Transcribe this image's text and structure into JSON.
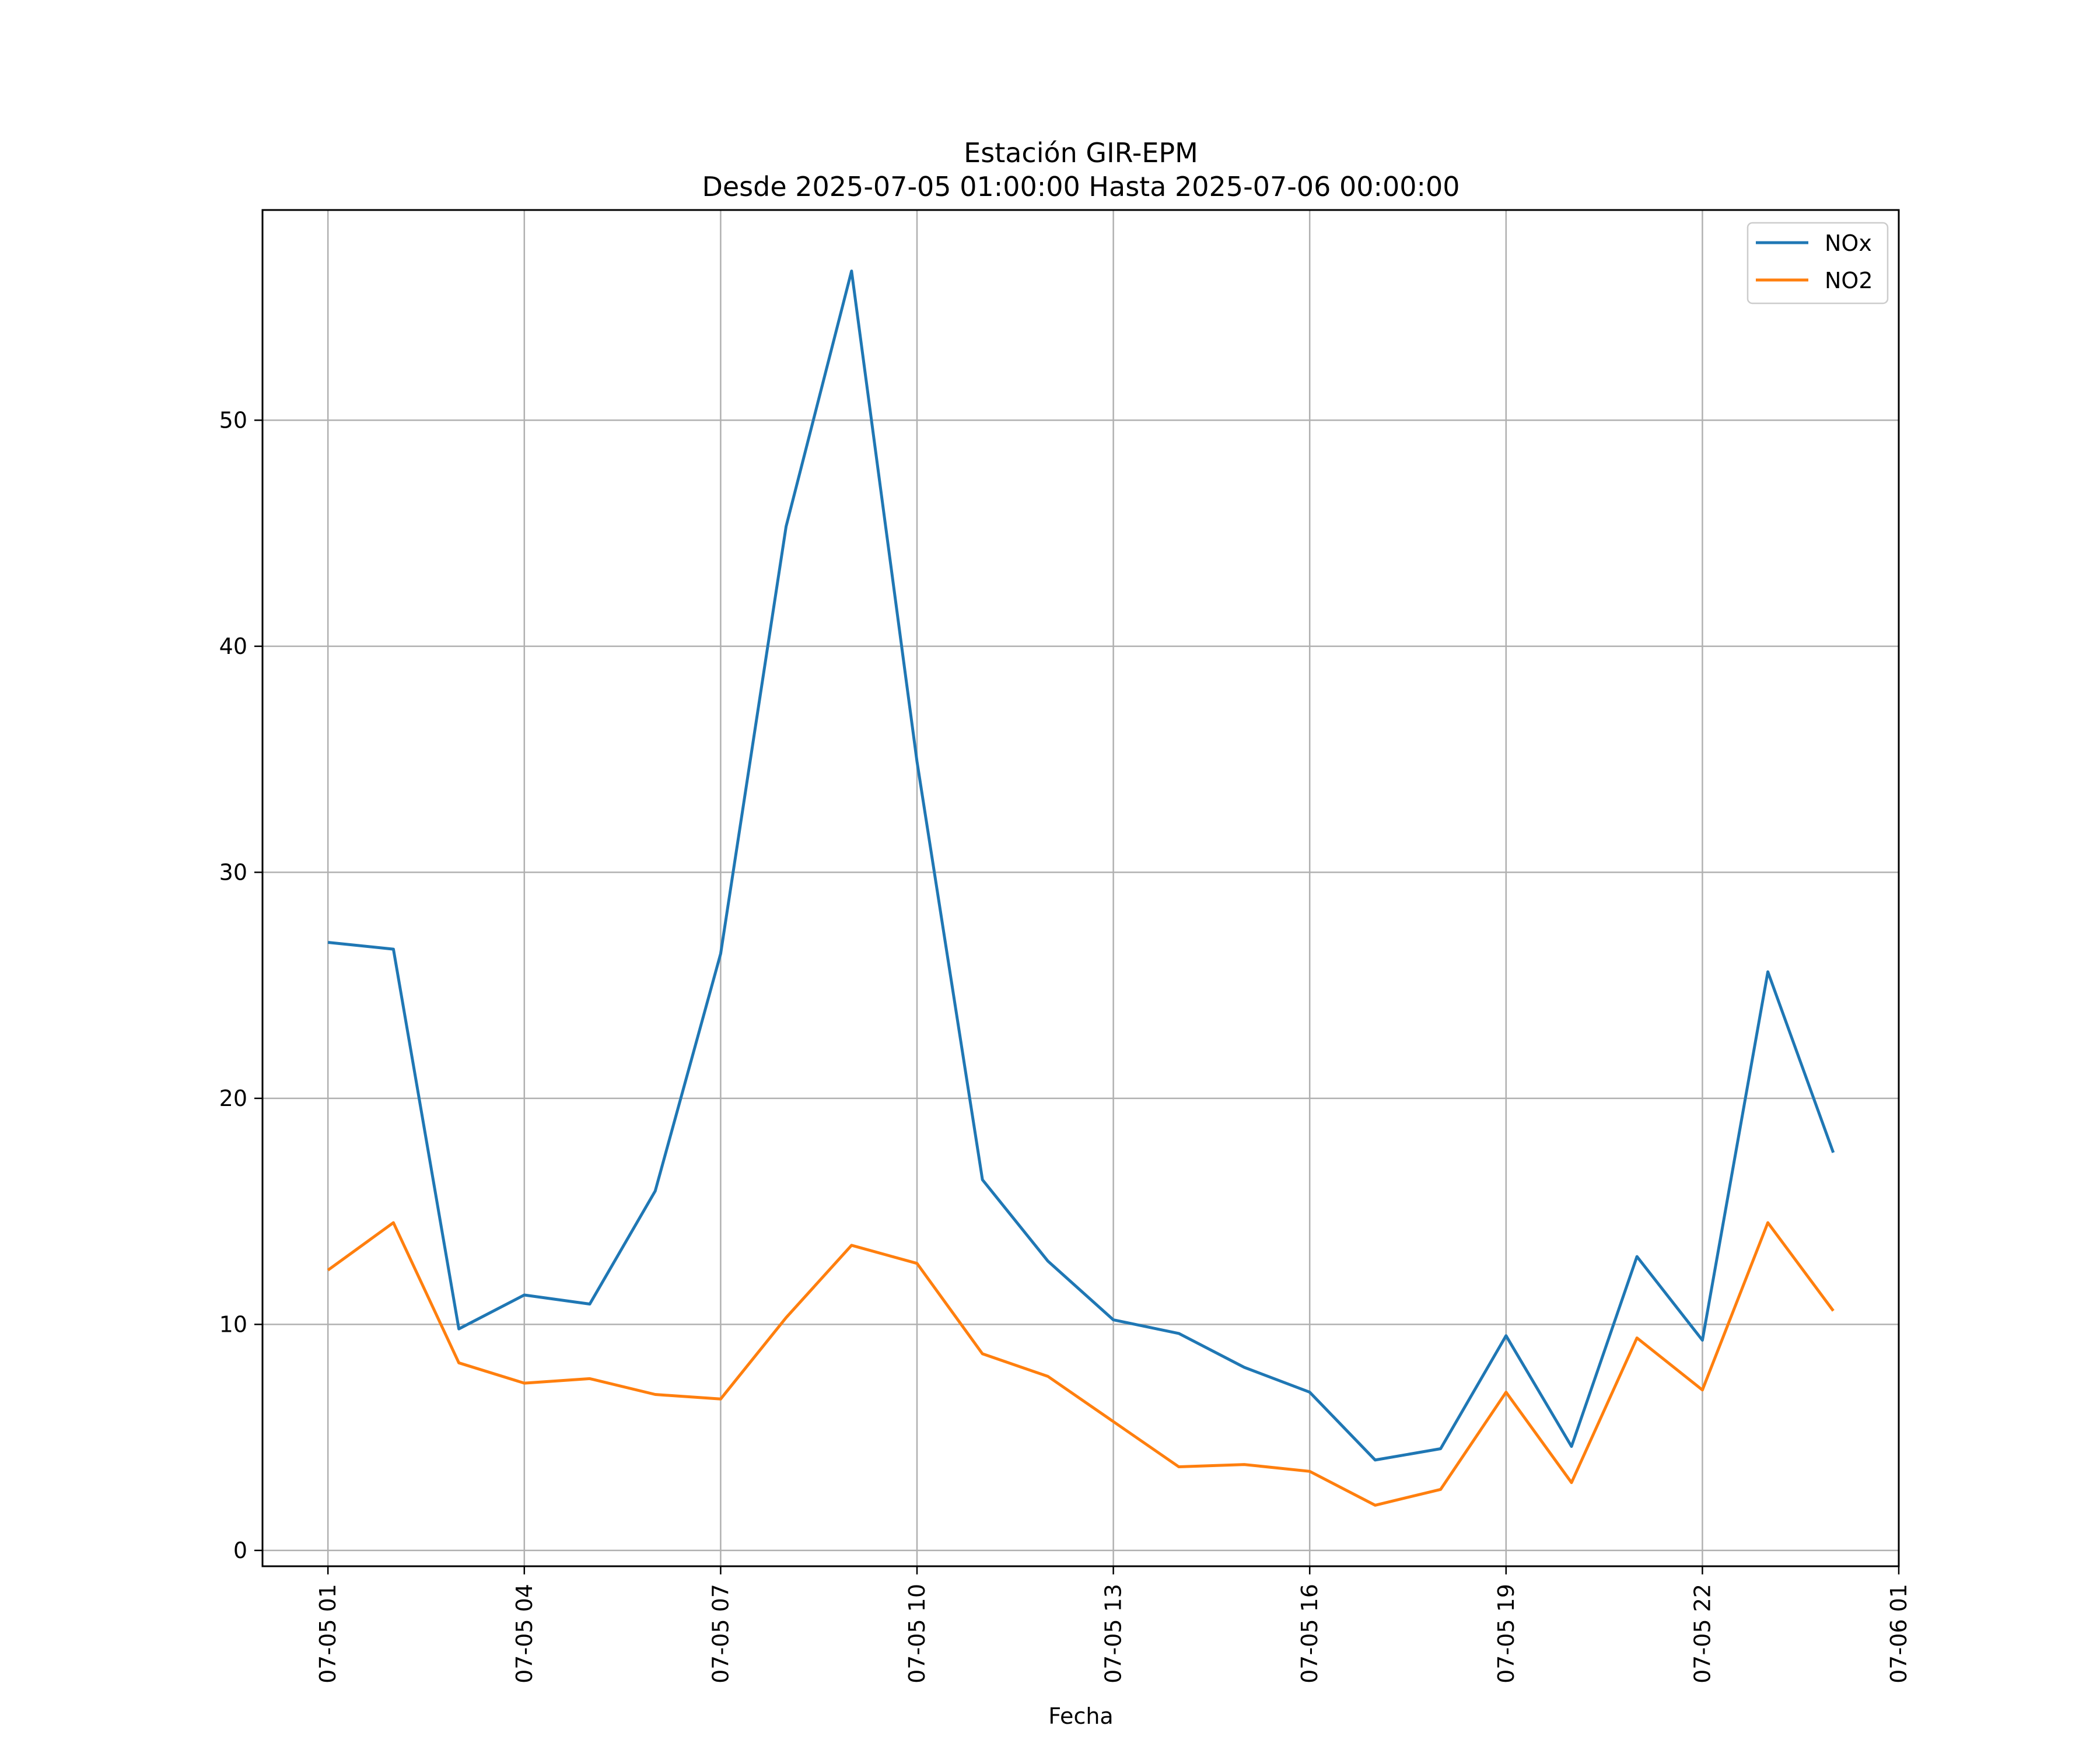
{
  "chart_data": {
    "type": "line",
    "title": "Estación GIR-EPM",
    "subtitle": "Desde 2025-07-05 01:00:00 Hasta 2025-07-06 00:00:00",
    "xlabel": "Fecha",
    "ylabel": "",
    "x": [
      "07-05 01",
      "07-05 02",
      "07-05 03",
      "07-05 04",
      "07-05 05",
      "07-05 06",
      "07-05 07",
      "07-05 08",
      "07-05 09",
      "07-05 10",
      "07-05 11",
      "07-05 12",
      "07-05 13",
      "07-05 14",
      "07-05 15",
      "07-05 16",
      "07-05 17",
      "07-05 18",
      "07-05 19",
      "07-05 20",
      "07-05 21",
      "07-05 22",
      "07-05 23",
      "07-06 00"
    ],
    "x_ticks": [
      "07-05 01",
      "07-05 04",
      "07-05 07",
      "07-05 10",
      "07-05 13",
      "07-05 16",
      "07-05 19",
      "07-05 22",
      "07-06 01"
    ],
    "y_ticks": [
      0,
      10,
      20,
      30,
      40,
      50
    ],
    "xlim": [
      "07-05 00",
      "07-06 01"
    ],
    "ylim": [
      -0.7,
      59.3
    ],
    "grid": true,
    "legend": "top-right",
    "series": [
      {
        "name": "NOx",
        "color": "#1f77b4",
        "values": [
          26.9,
          26.6,
          9.8,
          11.3,
          10.9,
          15.9,
          26.4,
          45.3,
          56.6,
          34.9,
          16.4,
          12.8,
          10.2,
          9.6,
          8.1,
          7.0,
          4.0,
          4.5,
          9.5,
          4.6,
          13.0,
          9.3,
          25.6,
          17.6
        ]
      },
      {
        "name": "NO2",
        "color": "#ff7f0e",
        "values": [
          12.4,
          14.5,
          8.3,
          7.4,
          7.6,
          6.9,
          6.7,
          10.3,
          13.5,
          12.7,
          8.7,
          7.7,
          5.7,
          3.7,
          3.8,
          3.5,
          2.0,
          2.7,
          7.0,
          3.0,
          9.4,
          7.1,
          14.5,
          10.6
        ]
      }
    ]
  }
}
